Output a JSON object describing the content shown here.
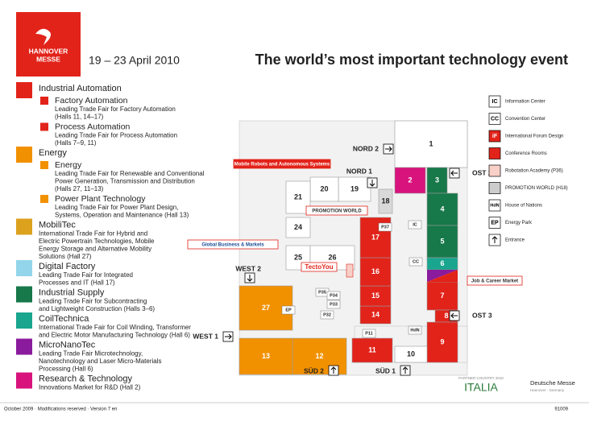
{
  "header": {
    "logo": [
      "HANNOVER",
      "MESSE"
    ],
    "dates": "19 – 23 April 2010",
    "title": "The world’s most important technology event"
  },
  "legend": [
    {
      "name": "Industrial Automation",
      "color": "#e2231a",
      "items": [
        {
          "name": "Factory Automation",
          "color": "#e2231a",
          "description": [
            "Leading Trade Fair for Factory Automation",
            "(Halls 11, 14–17)"
          ]
        },
        {
          "name": "Process Automation",
          "color": "#e2231a",
          "description": [
            "Leading Trade Fair for Process Automation",
            "(Halls 7–9, 11)"
          ]
        }
      ]
    },
    {
      "name": "Energy",
      "color": "#f29100",
      "items": [
        {
          "name": "Energy",
          "color": "#f29100",
          "description": [
            "Leading Trade Fair for Renewable and Conventional",
            "Power Generation, Transmission and Distribution",
            "(Halls 27, 11–13)"
          ]
        },
        {
          "name": "Power Plant Technology",
          "color": "#f29100",
          "description": [
            "Leading Trade Fair for Power Plant Design,",
            "Systems, Operation and Maintenance (Hall 13)"
          ]
        }
      ]
    },
    {
      "name": "MobiliTec",
      "color": "#dca11d",
      "description": [
        "International Trade Fair for Hybrid and",
        "Electric Powertrain Technologies, Mobile",
        "Energy Storage and Alternative Mobility",
        "Solutions (Hall 27)"
      ]
    },
    {
      "name": "Digital Factory",
      "color": "#93d5ea",
      "description": [
        "Leading Trade Fair for Integrated",
        "Processes and IT (Hall 17)"
      ]
    },
    {
      "name": "Industrial Supply",
      "color": "#17784a",
      "description": [
        "Leading Trade Fair for Subcontracting",
        "and Lightweight Construction (Halls 3–6)"
      ]
    },
    {
      "name": "CoilTechnica",
      "color": "#19a58e",
      "description": [
        "International Trade Fair for Coil Winding, Transformer",
        "and Electric Motor Manufacturing Technology (Hall 6)"
      ]
    },
    {
      "name": "MicroNanoTec",
      "color": "#8a1b9c",
      "description": [
        "Leading Trade Fair Microtechnology,",
        "Nanotechnology and Laser Micro-Materials",
        "Processing (Hall 6)"
      ]
    },
    {
      "name": "Research & Technology",
      "color": "#d8137c",
      "description": [
        "Innovations Market for R&D (Hall 2)"
      ]
    }
  ],
  "map": {
    "halls": [
      {
        "label": "1",
        "color": "#ffffff"
      },
      {
        "label": "2",
        "color": "#d8137c"
      },
      {
        "label": "3",
        "color": "#17784a"
      },
      {
        "label": "4",
        "color": "#17784a"
      },
      {
        "label": "5",
        "color": "#17784a"
      },
      {
        "label": "6",
        "color": "#19a58e"
      },
      {
        "label": "7",
        "color": "#e2231a"
      },
      {
        "label": "8",
        "color": "#e2231a"
      },
      {
        "label": "9",
        "color": "#e2231a"
      },
      {
        "label": "10",
        "color": "#ffffff"
      },
      {
        "label": "11",
        "color": "#e2231a"
      },
      {
        "label": "12",
        "color": "#f29100"
      },
      {
        "label": "13",
        "color": "#f29100"
      },
      {
        "label": "14",
        "color": "#e2231a"
      },
      {
        "label": "15",
        "color": "#e2231a"
      },
      {
        "label": "16",
        "color": "#e2231a"
      },
      {
        "label": "17",
        "color": "#e2231a"
      },
      {
        "label": "18",
        "color": "#d9d9d9"
      },
      {
        "label": "19",
        "color": "#ffffff"
      },
      {
        "label": "20",
        "color": "#ffffff"
      },
      {
        "label": "21",
        "color": "#ffffff"
      },
      {
        "label": "24",
        "color": "#ffffff"
      },
      {
        "label": "25",
        "color": "#ffffff"
      },
      {
        "label": "26",
        "color": "#ffffff"
      },
      {
        "label": "27",
        "color": "#f29100"
      }
    ],
    "entrances": [
      "NORD 2",
      "NORD 1",
      "OST 2",
      "OST 3",
      "WEST 1",
      "WEST 2",
      "SÜD 2",
      "SÜD 1"
    ],
    "callouts": [
      "Mobile Robots and Autonomous Systems",
      "Global Business & Markets",
      "PROMOTION WORLD",
      "TectoYou",
      "Job & Career Market"
    ],
    "markers": [
      "IC",
      "CC",
      "HdN",
      "EP",
      "P37",
      "P35",
      "P34",
      "P33",
      "P32",
      "P11"
    ]
  },
  "key": [
    {
      "code": "IC",
      "label": "Information Center"
    },
    {
      "code": "CC",
      "label": "Convention Center"
    },
    {
      "code": "iF",
      "label": "International Forum Design"
    },
    {
      "label": "Conference Rooms"
    },
    {
      "label": "Robotation Academy (P36)"
    },
    {
      "label": "PROMOTION WORLD (H18)"
    },
    {
      "code": "HdN",
      "label": "House of Nations"
    },
    {
      "code": "EP",
      "label": "Energy Park"
    },
    {
      "label": "Entrance"
    }
  ],
  "partner": {
    "caption": "PARTNER COUNTRY 2010",
    "country": "ITALIA",
    "company": "Deutsche Messe",
    "city": "Hannover · Germany"
  },
  "footer": {
    "left": "October 2009 · Modifications reserved · Version 7 en",
    "right": "91009"
  }
}
